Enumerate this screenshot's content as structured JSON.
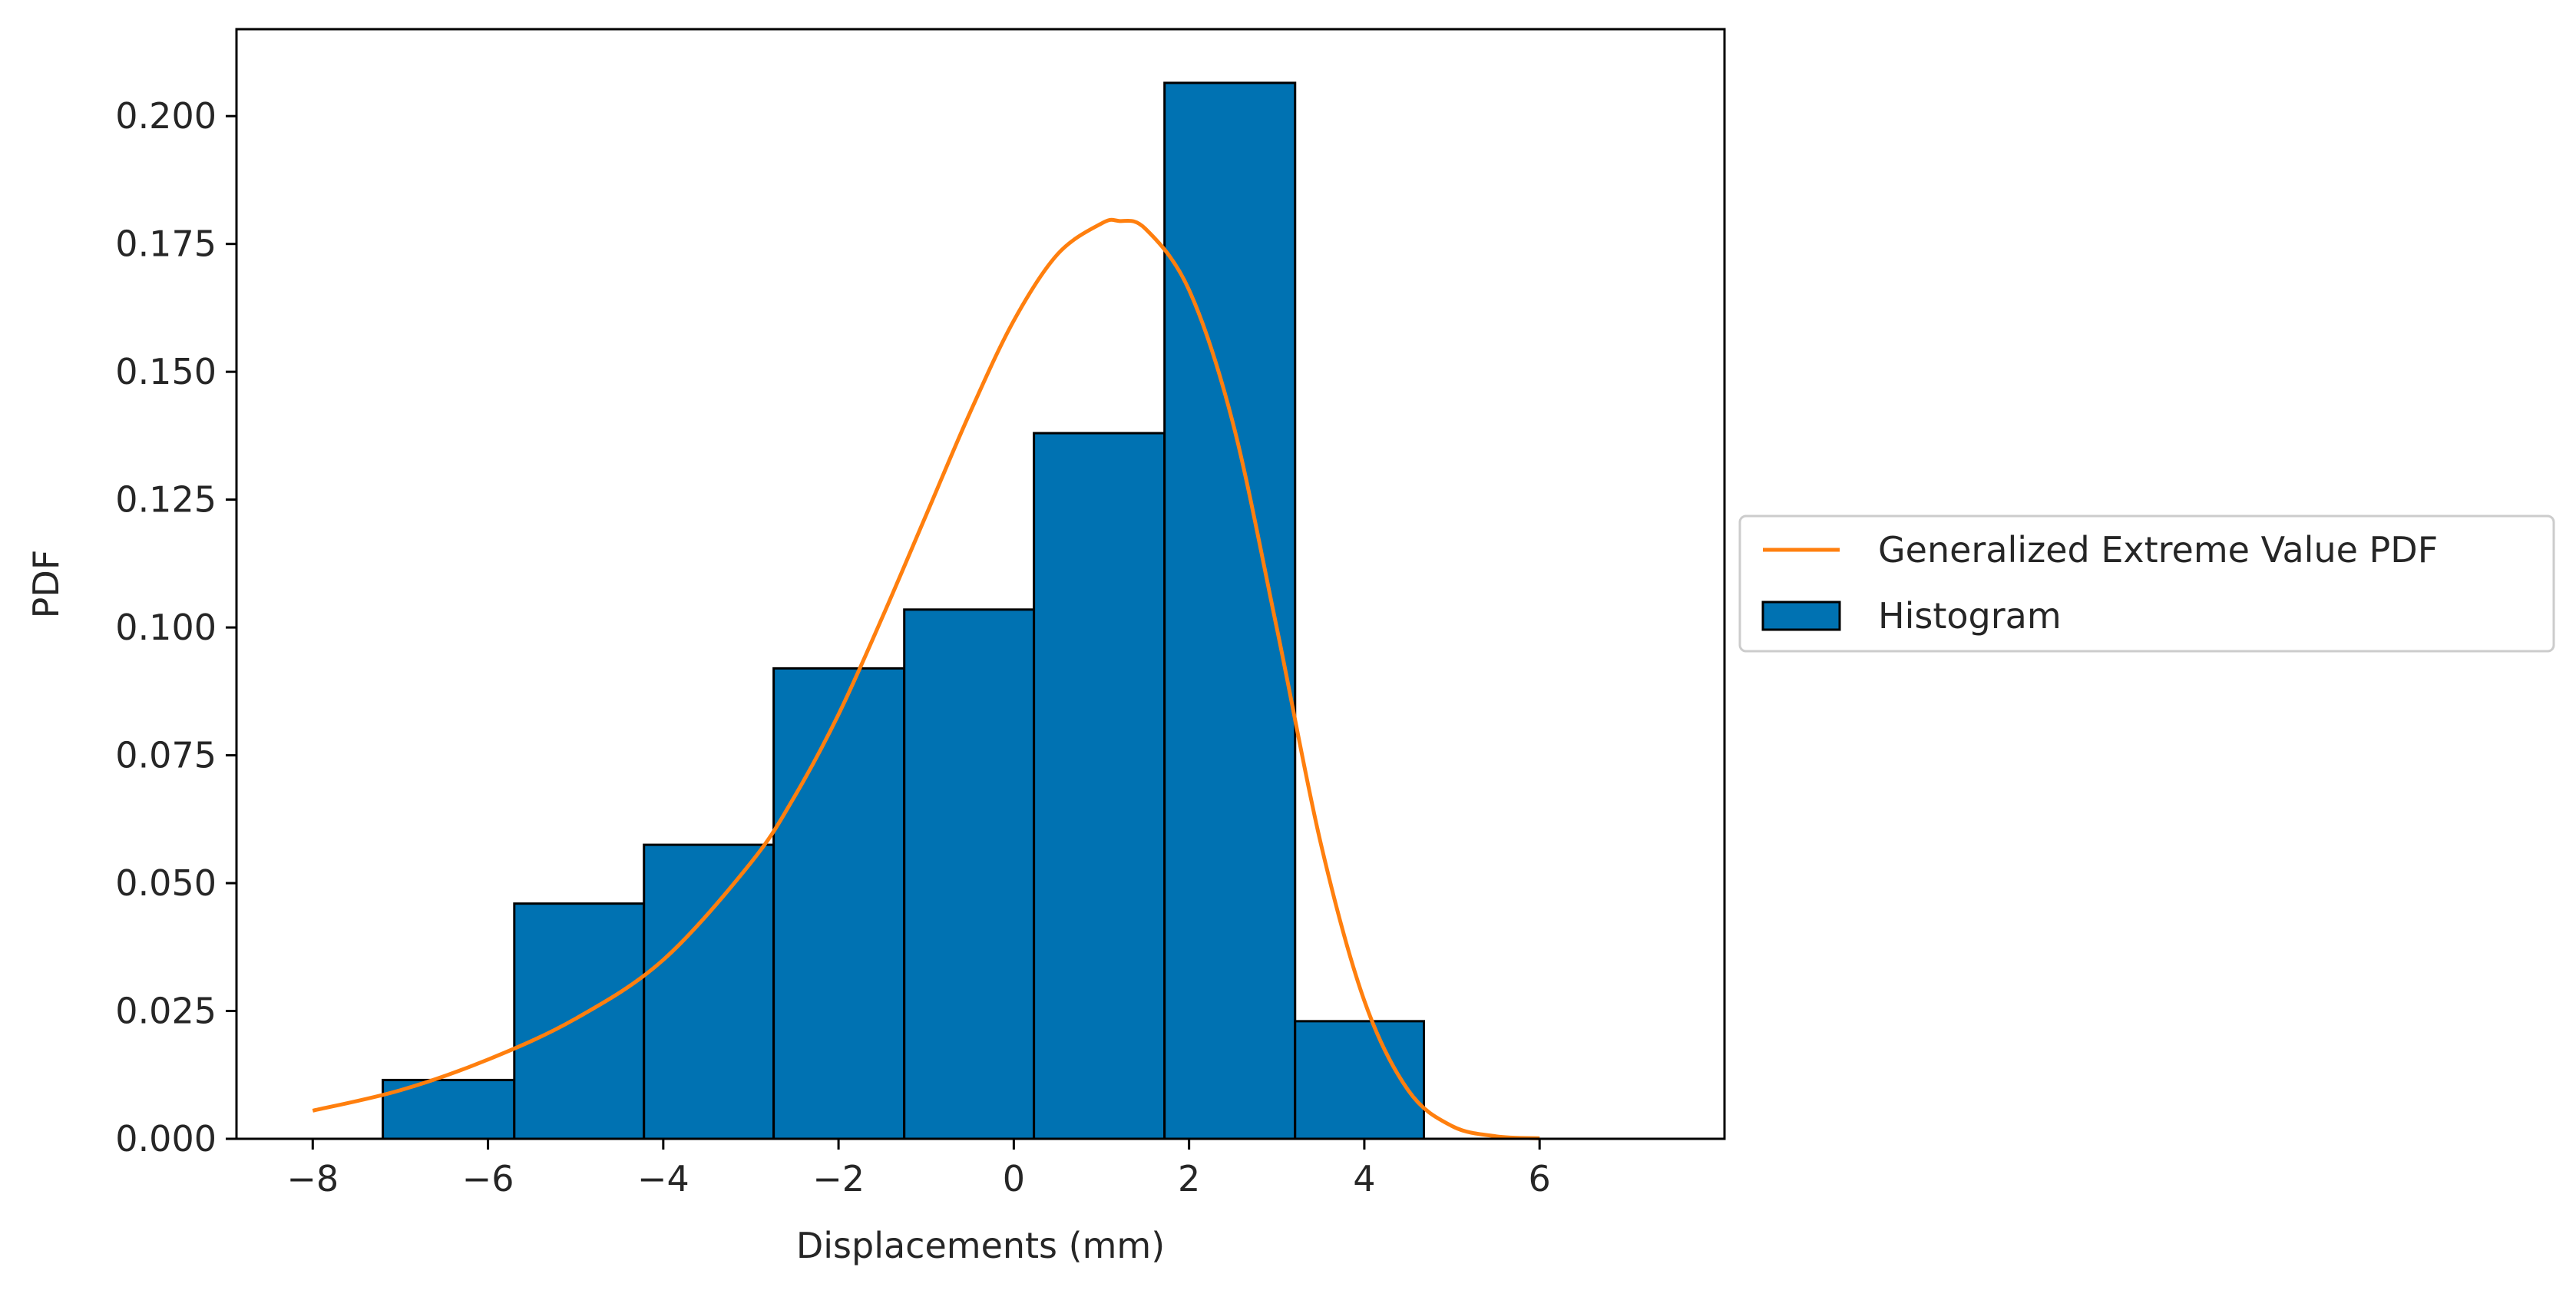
{
  "chart_data": {
    "type": "bar",
    "xlabel": "Displacements (mm)",
    "ylabel": "PDF",
    "title": "",
    "xlim": [
      -8.87,
      8.11
    ],
    "ylim": [
      0.0,
      0.217
    ],
    "xticks": [
      -8,
      -6,
      -4,
      -2,
      0,
      2,
      4,
      6
    ],
    "xtick_labels": [
      "−8",
      "−6",
      "−4",
      "−2",
      "0",
      "2",
      "4",
      "6"
    ],
    "yticks": [
      0.0,
      0.025,
      0.05,
      0.075,
      0.1,
      0.125,
      0.15,
      0.175,
      0.2
    ],
    "ytick_labels": [
      "0.000",
      "0.025",
      "0.050",
      "0.075",
      "0.100",
      "0.125",
      "0.150",
      "0.175",
      "0.200"
    ],
    "grid": false,
    "legend_position": "outside-right",
    "legend": [
      {
        "label": "Generalized Extreme Value PDF",
        "kind": "line",
        "color": "#ff7f0e"
      },
      {
        "label": "Histogram",
        "kind": "patch",
        "color": "#0072b2"
      }
    ],
    "histogram": {
      "name": "Histogram",
      "color": "#0072b2",
      "edgecolor": "#000000",
      "bin_edges": [
        -7.2,
        -5.7,
        -4.22,
        -2.74,
        -1.25,
        0.23,
        1.72,
        3.21,
        4.68
      ],
      "values": [
        0.0115,
        0.046,
        0.0575,
        0.092,
        0.1035,
        0.138,
        0.2065,
        0.023
      ]
    },
    "line": {
      "name": "Generalized Extreme Value PDF",
      "color": "#ff7f0e",
      "x": [
        -8.0,
        -7.0,
        -6.0,
        -5.0,
        -4.0,
        -3.0,
        -2.5,
        -2.0,
        -1.5,
        -1.0,
        -0.5,
        0.0,
        0.5,
        1.0,
        1.2,
        1.5,
        2.0,
        2.5,
        3.0,
        3.5,
        4.0,
        4.5,
        5.0,
        5.5,
        6.0
      ],
      "y": [
        0.0055,
        0.0095,
        0.0155,
        0.0235,
        0.035,
        0.054,
        0.067,
        0.083,
        0.102,
        0.122,
        0.142,
        0.16,
        0.173,
        0.179,
        0.1795,
        0.178,
        0.166,
        0.14,
        0.1,
        0.058,
        0.027,
        0.0095,
        0.0025,
        0.0005,
        0.0001
      ]
    }
  }
}
